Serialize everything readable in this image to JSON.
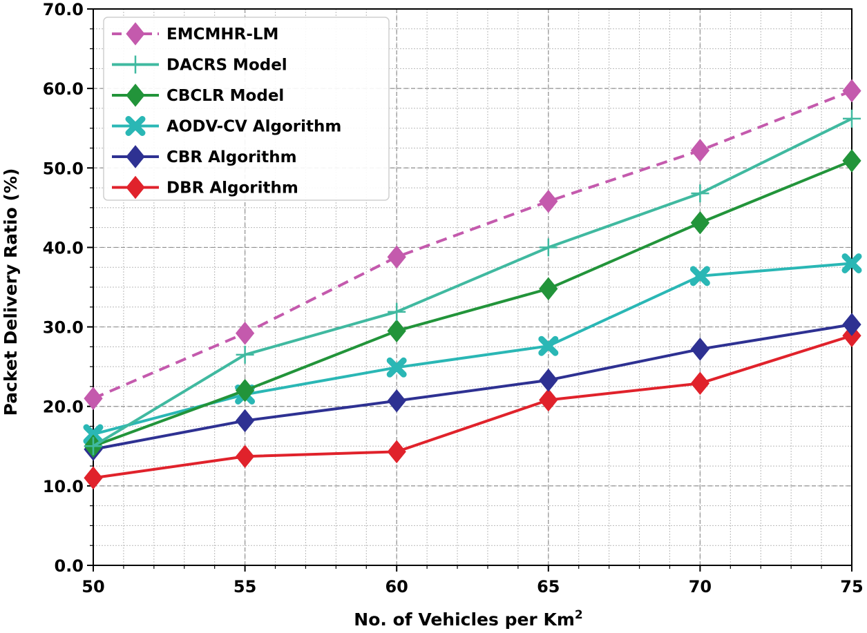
{
  "chart_data": {
    "type": "line",
    "title": "",
    "xlabel": "No. of Vehicles per Km",
    "xlabel_superscript": "2",
    "ylabel": "Packet Delivery Ratio (%)",
    "x": [
      50,
      55,
      60,
      65,
      70,
      75
    ],
    "xlim": [
      50,
      75
    ],
    "ylim": [
      0,
      70
    ],
    "x_ticks": [
      "50",
      "55",
      "60",
      "65",
      "70",
      "75"
    ],
    "y_ticks": [
      "0.0",
      "10.0",
      "20.0",
      "30.0",
      "40.0",
      "50.0",
      "60.0",
      "70.0"
    ],
    "grid": true,
    "legend_position": "top-left",
    "series": [
      {
        "name": "EMCMHR-LM",
        "color": "#c45aad",
        "marker": "diamond",
        "dashed": true,
        "values": [
          21.0,
          29.2,
          38.8,
          45.8,
          52.2,
          59.7
        ]
      },
      {
        "name": "DACRS Model",
        "color": "#40b9a0",
        "marker": "plus",
        "dashed": false,
        "values": [
          15.0,
          26.5,
          31.9,
          40.0,
          46.8,
          56.2
        ]
      },
      {
        "name": "CBCLR Model",
        "color": "#22943a",
        "marker": "diamond",
        "dashed": false,
        "values": [
          15.0,
          22.0,
          29.5,
          34.8,
          43.1,
          50.9
        ]
      },
      {
        "name": "AODV-CV Algorithm",
        "color": "#2ab7b5",
        "marker": "x",
        "dashed": false,
        "values": [
          16.5,
          21.5,
          24.9,
          27.6,
          36.4,
          38.0
        ]
      },
      {
        "name": "CBR Algorithm",
        "color": "#2e3192",
        "marker": "diamond",
        "dashed": false,
        "values": [
          14.6,
          18.2,
          20.7,
          23.3,
          27.2,
          30.3
        ]
      },
      {
        "name": "DBR Algorithm",
        "color": "#e0222b",
        "marker": "diamond",
        "dashed": false,
        "values": [
          11.0,
          13.7,
          14.3,
          20.8,
          22.9,
          28.9
        ]
      }
    ]
  }
}
